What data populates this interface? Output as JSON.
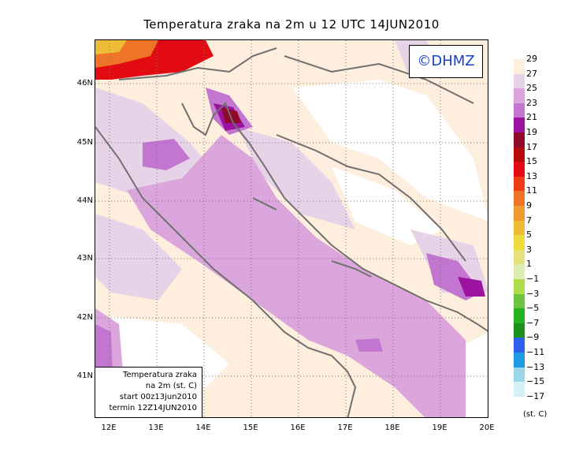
{
  "title": "Temperatura zraka na 2m u 12 UTC 14JUN2010",
  "copyright": "©DHMZ",
  "info": {
    "line1": "Temperatura zraka",
    "line2": "na 2m (st. C)",
    "line3": "start 00z13jun2010",
    "line4": "termin 12Z14JUN2010"
  },
  "lat_labels": [
    "46N",
    "45N",
    "44N",
    "43N",
    "42N",
    "41N"
  ],
  "lon_labels": [
    "12E",
    "13E",
    "14E",
    "15E",
    "16E",
    "17E",
    "18E",
    "19E",
    "20E"
  ],
  "legend": {
    "unit": "(st. C)",
    "ticks": [
      "29",
      "27",
      "25",
      "23",
      "21",
      "19",
      "17",
      "15",
      "13",
      "11",
      "9",
      "7",
      "5",
      "3",
      "1",
      "−1",
      "−3",
      "−5",
      "−7",
      "−9",
      "−11",
      "−13",
      "−15",
      "−17"
    ],
    "colors": [
      "#fdeedd",
      "#e7d3e8",
      "#dba6dc",
      "#c376cf",
      "#9c13a0",
      "#8e0c2a",
      "#b70a0a",
      "#e30b12",
      "#ee3c18",
      "#ee7428",
      "#ee9b34",
      "#eebd38",
      "#eedc3a",
      "#e5e27a",
      "#ddeeb4",
      "#aedc4a",
      "#6ec43c",
      "#24b224",
      "#1d8f1d",
      "#2e5fee",
      "#1e9ae0",
      "#9ad6e8",
      "#d6f1f6"
    ]
  }
}
